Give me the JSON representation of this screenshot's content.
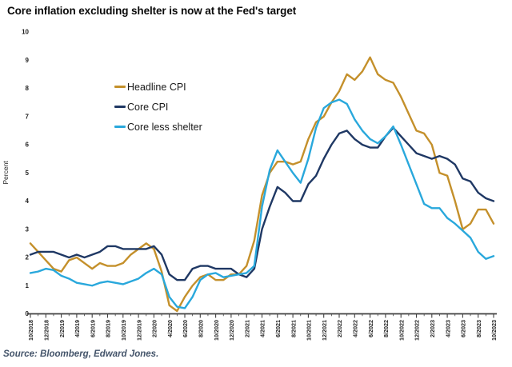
{
  "title": "Core inflation excluding shelter is now at the Fed's target",
  "source_note": "Source: Bloomberg, Edward Jones.",
  "colors": {
    "headline_cpi": "#C4902B",
    "core_cpi": "#1F3864",
    "core_less_shelter": "#29A8DC",
    "axis": "#404040",
    "tick_text": "#1f1f1f",
    "source_text": "#44546A"
  },
  "chart_data": {
    "type": "line",
    "title": "Core inflation excluding shelter is now at the Fed's target",
    "xlabel": "",
    "ylabel": "Percent",
    "ylim": [
      0,
      10
    ],
    "y_ticks": [
      0,
      1,
      2,
      3,
      4,
      5,
      6,
      7,
      8,
      9,
      10
    ],
    "grid": false,
    "legend_position": "upper-left-inside",
    "frequency": "monthly",
    "x_start": "10/2018",
    "x_end": "10/2023",
    "x_tick_labels": [
      "10/2018",
      "12/2018",
      "2/2019",
      "4/2019",
      "6/2019",
      "8/2019",
      "10/2019",
      "12/2019",
      "2/2020",
      "4/2020",
      "6/2020",
      "8/2020",
      "10/2020",
      "12/2020",
      "2/2021",
      "4/2021",
      "6/2021",
      "8/2021",
      "10/2021",
      "12/2021",
      "2/2022",
      "4/2022",
      "6/2022",
      "8/2022",
      "10/2022",
      "12/2022",
      "2/2023",
      "4/2023",
      "6/2023",
      "8/2023",
      "10/2023"
    ],
    "data_points_per_labeled_tick": 2,
    "series": [
      {
        "name": "Headline CPI",
        "color": "#C4902B",
        "values": [
          2.5,
          2.2,
          1.9,
          1.6,
          1.5,
          1.9,
          2.0,
          1.8,
          1.6,
          1.8,
          1.7,
          1.7,
          1.8,
          2.1,
          2.3,
          2.5,
          2.3,
          1.5,
          0.3,
          0.1,
          0.6,
          1.0,
          1.3,
          1.4,
          1.2,
          1.2,
          1.4,
          1.4,
          1.7,
          2.6,
          4.2,
          5.0,
          5.4,
          5.4,
          5.3,
          5.4,
          6.2,
          6.8,
          7.0,
          7.5,
          7.9,
          8.5,
          8.3,
          8.6,
          9.1,
          8.5,
          8.3,
          8.2,
          7.7,
          7.1,
          6.5,
          6.4,
          6.0,
          5.0,
          4.9,
          4.0,
          3.0,
          3.2,
          3.7,
          3.7,
          3.2
        ]
      },
      {
        "name": "Core CPI",
        "color": "#1F3864",
        "values": [
          2.1,
          2.2,
          2.2,
          2.2,
          2.1,
          2.0,
          2.1,
          2.0,
          2.1,
          2.2,
          2.4,
          2.4,
          2.3,
          2.3,
          2.3,
          2.3,
          2.4,
          2.1,
          1.4,
          1.2,
          1.2,
          1.6,
          1.7,
          1.7,
          1.6,
          1.6,
          1.6,
          1.4,
          1.3,
          1.6,
          3.0,
          3.8,
          4.5,
          4.3,
          4.0,
          4.0,
          4.6,
          4.9,
          5.5,
          6.0,
          6.4,
          6.5,
          6.2,
          6.0,
          5.9,
          5.9,
          6.3,
          6.6,
          6.3,
          6.0,
          5.7,
          5.6,
          5.5,
          5.6,
          5.5,
          5.3,
          4.8,
          4.7,
          4.3,
          4.1,
          4.0
        ]
      },
      {
        "name": "Core less shelter",
        "color": "#29A8DC",
        "values": [
          1.45,
          1.5,
          1.6,
          1.55,
          1.35,
          1.25,
          1.1,
          1.05,
          1.0,
          1.1,
          1.15,
          1.1,
          1.05,
          1.15,
          1.25,
          1.45,
          1.6,
          1.4,
          0.6,
          0.25,
          0.2,
          0.6,
          1.2,
          1.4,
          1.45,
          1.3,
          1.35,
          1.4,
          1.45,
          1.7,
          3.8,
          5.1,
          5.8,
          5.4,
          5.0,
          4.65,
          5.5,
          6.6,
          7.3,
          7.5,
          7.6,
          7.45,
          6.9,
          6.5,
          6.2,
          6.05,
          6.3,
          6.65,
          6.0,
          5.3,
          4.6,
          3.9,
          3.75,
          3.75,
          3.4,
          3.2,
          2.95,
          2.7,
          2.2,
          1.95,
          2.05
        ]
      }
    ]
  }
}
